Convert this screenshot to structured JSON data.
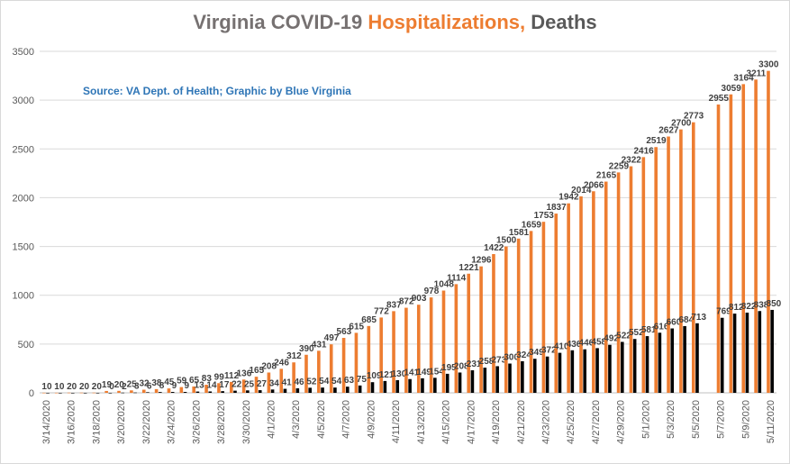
{
  "title": {
    "part1": "Virginia COVID-19 ",
    "part2": "Hospitalizations,",
    "part3": " Deaths"
  },
  "source_note": "Source: VA Dept. of Health; Graphic by Blue Virginia",
  "colors": {
    "hospitalizations": "#ed7d31",
    "deaths": "#000000",
    "title_gray": "#767171",
    "title_orange": "#ed7d31",
    "title_dark": "#595959",
    "source": "#2e75b6",
    "grid": "#d9d9d9"
  },
  "chart_data": {
    "type": "bar",
    "title": "Virginia COVID-19 Hospitalizations, Deaths",
    "ylim": [
      0,
      3500
    ],
    "y_ticks": [
      0,
      500,
      1000,
      1500,
      2000,
      2500,
      3000,
      3500
    ],
    "grid": true,
    "legend": "none",
    "categories": [
      "3/14/2020",
      "3/15/2020",
      "3/16/2020",
      "3/17/2020",
      "3/18/2020",
      "3/19/2020",
      "3/20/2020",
      "3/21/2020",
      "3/22/2020",
      "3/23/2020",
      "3/24/2020",
      "3/25/2020",
      "3/26/2020",
      "3/27/2020",
      "3/28/2020",
      "3/29/2020",
      "3/30/2020",
      "3/31/2020",
      "4/1/2020",
      "4/2/2020",
      "4/3/2020",
      "4/4/2020",
      "4/5/2020",
      "4/6/2020",
      "4/7/2020",
      "4/8/2020",
      "4/9/2020",
      "4/10/2020",
      "4/11/2020",
      "4/12/2020",
      "4/13/2020",
      "4/14/2020",
      "4/15/2020",
      "4/16/2020",
      "4/17/2020",
      "4/18/2020",
      "4/19/2020",
      "4/20/2020",
      "4/21/2020",
      "4/22/2020",
      "4/23/2020",
      "4/24/2020",
      "4/25/2020",
      "4/26/2020",
      "4/27/2020",
      "4/28/2020",
      "4/29/2020",
      "4/30/2020",
      "5/1/2020",
      "5/2/2020",
      "5/3/2020",
      "5/4/2020",
      "5/5/2020",
      "5/6/2020",
      "5/7/2020",
      "5/8/2020",
      "5/9/2020",
      "5/10/2020",
      "5/11/2020"
    ],
    "x_tick_labels": [
      "3/14/2020",
      "3/16/2020",
      "3/18/2020",
      "3/20/2020",
      "3/22/2020",
      "3/24/2020",
      "3/26/2020",
      "3/28/2020",
      "3/30/2020",
      "4/1/2020",
      "4/3/2020",
      "4/5/2020",
      "4/7/2020",
      "4/9/2020",
      "4/11/2020",
      "4/13/2020",
      "4/15/2020",
      "4/17/2020",
      "4/19/2020",
      "4/21/2020",
      "4/23/2020",
      "4/25/2020",
      "4/27/2020",
      "4/29/2020",
      "5/1/2020",
      "5/3/2020",
      "5/5/2020",
      "5/7/2020",
      "5/9/2020",
      "5/11/2020"
    ],
    "series": [
      {
        "values": [
          1,
          1,
          2,
          2,
          2,
          19,
          20,
          25,
          32,
          38,
          45,
          59,
          65,
          83,
          99,
          112,
          136,
          165,
          208,
          246,
          312,
          390,
          431,
          497,
          563,
          615,
          685,
          772,
          837,
          872,
          903,
          978,
          1048,
          1114,
          1221,
          1296,
          1422,
          1500,
          1581,
          1659,
          1753,
          1837,
          1942,
          2014,
          2066,
          2165,
          2259,
          2322,
          2416,
          2519,
          2627,
          2700,
          2773,
          null,
          2955,
          3059,
          3164,
          3211,
          3300
        ]
      },
      {
        "values": [
          0,
          0,
          0,
          0,
          0,
          0,
          2,
          3,
          6,
          8,
          9,
          9,
          13,
          14,
          17,
          22,
          25,
          27,
          34,
          41,
          46,
          52,
          54,
          54,
          63,
          75,
          109,
          121,
          130,
          141,
          149,
          154,
          195,
          208,
          231,
          258,
          273,
          300,
          324,
          349,
          372,
          410,
          436,
          446,
          458,
          492,
          522,
          552,
          581,
          616,
          660,
          684,
          713,
          null,
          769,
          812,
          822,
          838,
          850
        ]
      }
    ]
  }
}
